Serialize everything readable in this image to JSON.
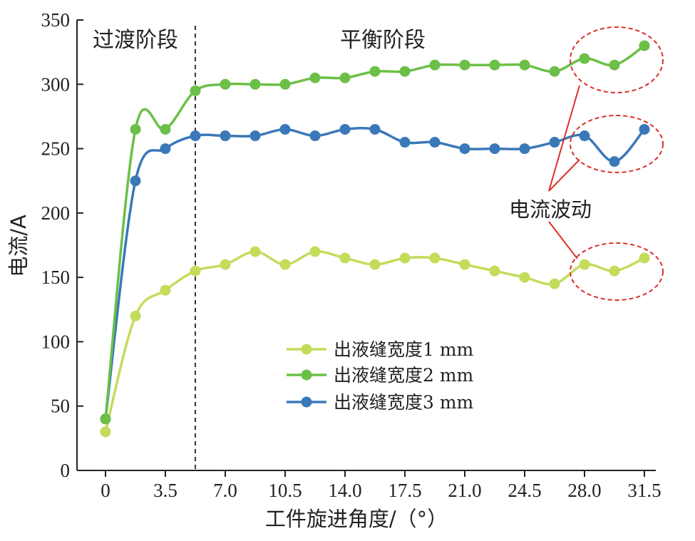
{
  "chart_data": {
    "type": "line",
    "title": "",
    "xlabel": "工件旋进角度/（°）",
    "ylabel": "电流/A",
    "xlim": [
      -1,
      32
    ],
    "ylim": [
      0,
      350
    ],
    "xticks": [
      0,
      3.5,
      7.0,
      10.5,
      14.0,
      17.5,
      21.0,
      24.5,
      28.0,
      31.5
    ],
    "xtick_labels": [
      "0",
      "3.5",
      "7.0",
      "10.5",
      "14.0",
      "17.5",
      "21.0",
      "24.5",
      "28.0",
      "31.5"
    ],
    "yticks": [
      0,
      50,
      100,
      150,
      200,
      250,
      300,
      350
    ],
    "ytick_labels": [
      "0",
      "50",
      "100",
      "150",
      "200",
      "250",
      "300",
      "350"
    ],
    "grid": false,
    "legend_position": "center-right",
    "series": [
      {
        "name": "出液缝宽度1 mm",
        "color": "#c3dc5a",
        "x": [
          0,
          1.75,
          3.5,
          5.25,
          7.0,
          8.75,
          10.5,
          12.25,
          14.0,
          15.75,
          17.5,
          19.25,
          21.0,
          22.75,
          24.5,
          26.25,
          28.0,
          29.75,
          31.5
        ],
        "y": [
          30,
          120,
          140,
          155,
          160,
          170,
          160,
          170,
          165,
          160,
          165,
          165,
          160,
          155,
          150,
          145,
          160,
          155,
          165
        ]
      },
      {
        "name": "出液缝宽度2 mm",
        "color": "#6cbf47",
        "x": [
          0,
          1.75,
          3.5,
          5.25,
          7.0,
          8.75,
          10.5,
          12.25,
          14.0,
          15.75,
          17.5,
          19.25,
          21.0,
          22.75,
          24.5,
          26.25,
          28.0,
          29.75,
          31.5
        ],
        "y": [
          40,
          265,
          265,
          295,
          300,
          300,
          300,
          305,
          305,
          310,
          310,
          315,
          315,
          315,
          315,
          310,
          320,
          315,
          330
        ]
      },
      {
        "name": "出液缝宽度3 mm",
        "color": "#3a78b8",
        "x": [
          0,
          1.75,
          3.5,
          5.25,
          7.0,
          8.75,
          10.5,
          12.25,
          14.0,
          15.75,
          17.5,
          19.25,
          21.0,
          22.75,
          24.5,
          26.25,
          28.0,
          29.75,
          31.5
        ],
        "y": [
          40,
          225,
          250,
          260,
          260,
          260,
          265,
          260,
          265,
          265,
          255,
          255,
          250,
          250,
          250,
          255,
          260,
          240,
          265
        ]
      }
    ],
    "divider_x": 5.25,
    "region_labels": {
      "left": "过渡阶段",
      "right": "平衡阶段"
    },
    "annotation": {
      "text": "电流波动",
      "ellipse_color": "#d9302a"
    }
  }
}
